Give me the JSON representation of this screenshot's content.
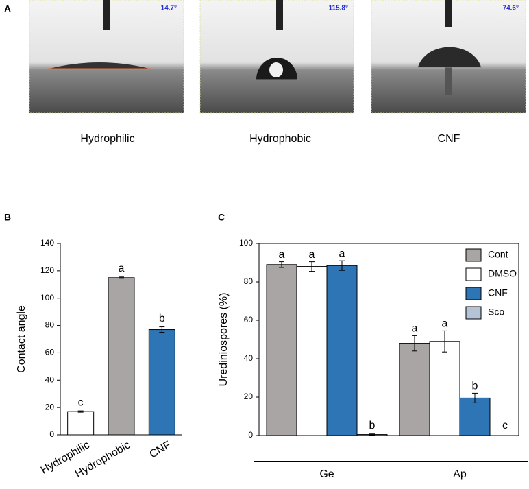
{
  "panel_a": {
    "label": "A",
    "images": [
      {
        "angle": "14.7°",
        "caption": "Hydrophilic"
      },
      {
        "angle": "115.8°",
        "caption": "Hydrophobic"
      },
      {
        "angle": "74.6°",
        "caption": "CNF"
      }
    ]
  },
  "chart_data": [
    {
      "type": "bar",
      "panel": "B",
      "ylabel": "Contact angle",
      "categories": [
        "Hydrophilic",
        "Hydrophobic",
        "CNF"
      ],
      "values": [
        17,
        115,
        77
      ],
      "errors": [
        0.5,
        0.5,
        2
      ],
      "letters": [
        "c",
        "a",
        "b"
      ],
      "colors": [
        "#ffffff",
        "#aaa5a5",
        "#2e75b6"
      ],
      "ylim": [
        0,
        140
      ],
      "yticks": [
        0,
        20,
        40,
        60,
        80,
        100,
        120,
        140
      ]
    },
    {
      "type": "bar",
      "panel": "C",
      "ylabel": "Urediniospores (%)",
      "categories": [
        "Ge",
        "Ap"
      ],
      "series": [
        {
          "name": "Cont",
          "color": "#aaa5a5",
          "values": [
            89,
            48
          ],
          "errors": [
            1.5,
            4
          ],
          "letters": [
            "a",
            "a"
          ]
        },
        {
          "name": "DMSO",
          "color": "#ffffff",
          "values": [
            88,
            49
          ],
          "errors": [
            2.5,
            5.5
          ],
          "letters": [
            "a",
            "a"
          ]
        },
        {
          "name": "CNF",
          "color": "#2e75b6",
          "values": [
            88.5,
            19.5
          ],
          "errors": [
            2.5,
            2.5
          ],
          "letters": [
            "a",
            "b"
          ]
        },
        {
          "name": "Sco",
          "color": "#b4c3d6",
          "values": [
            0.5,
            0
          ],
          "errors": [
            0.3,
            0
          ],
          "letters": [
            "b",
            "c"
          ]
        }
      ],
      "ylim": [
        0,
        100
      ],
      "yticks": [
        0,
        20,
        40,
        60,
        80,
        100
      ],
      "legend": "upper right"
    }
  ]
}
